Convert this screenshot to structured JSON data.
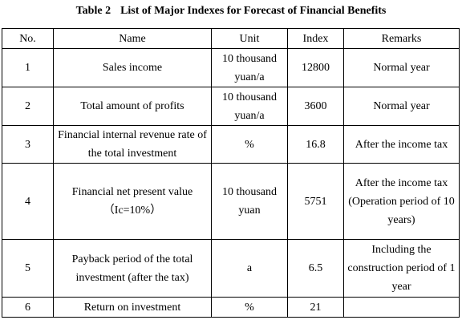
{
  "caption": {
    "label": "Table 2",
    "title": "List of Major Indexes for Forecast of Financial Benefits"
  },
  "headers": {
    "no": "No.",
    "name": "Name",
    "unit": "Unit",
    "index": "Index",
    "remarks": "Remarks"
  },
  "rows": [
    {
      "no": "1",
      "name": "Sales income",
      "unit": "10 thousand yuan/a",
      "index": "12800",
      "remarks": "Normal year"
    },
    {
      "no": "2",
      "name": "Total amount of profits",
      "unit": "10 thousand yuan/a",
      "index": "3600",
      "remarks": "Normal year"
    },
    {
      "no": "3",
      "name": "Financial internal revenue rate of the total investment",
      "unit": "%",
      "index": "16.8",
      "remarks": "After the income tax"
    },
    {
      "no": "4",
      "name": "Financial net present value（Ic=10%）",
      "unit": "10 thousand yuan",
      "index": "5751",
      "remarks": "After the income tax (Operation period of 10 years)"
    },
    {
      "no": "5",
      "name": "Payback period of the total investment (after the tax)",
      "unit": "a",
      "index": "6.5",
      "remarks": "Including the construction period of 1 year"
    },
    {
      "no": "6",
      "name": "Return on investment",
      "unit": "%",
      "index": "21",
      "remarks": ""
    }
  ]
}
